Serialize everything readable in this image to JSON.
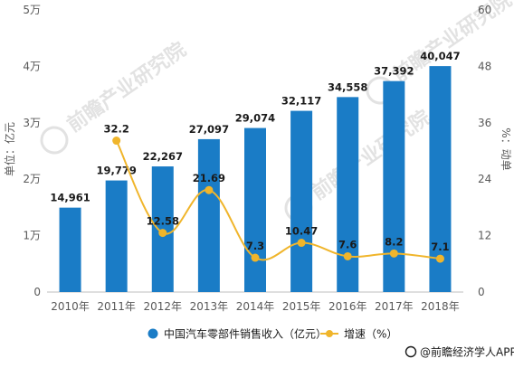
{
  "chart_data": {
    "type": "bar",
    "categories": [
      "2010年",
      "2011年",
      "2012年",
      "2013年",
      "2014年",
      "2015年",
      "2016年",
      "2017年",
      "2018年"
    ],
    "series": [
      {
        "name": "中国汽车零部件销售收入（亿元）",
        "type": "bar",
        "axis": "left",
        "values": [
          14961,
          19779,
          22267,
          27097,
          29074,
          32117,
          34558,
          37392,
          40047
        ],
        "labels": [
          "14,961",
          "19,779",
          "22,267",
          "27,097",
          "29,074",
          "32,117",
          "34,558",
          "37,392",
          "40,047"
        ],
        "color": "#1a7cc6"
      },
      {
        "name": "增速（%）",
        "type": "line",
        "axis": "right",
        "values": [
          null,
          32.2,
          12.58,
          21.69,
          7.3,
          10.47,
          7.6,
          8.2,
          7.1
        ],
        "labels": [
          "",
          "32.2",
          "12.58",
          "21.69",
          "7.3",
          "10.47",
          "7.6",
          "8.2",
          "7.1"
        ],
        "color": "#f0b52b"
      }
    ],
    "ylabel_left": "单位：亿元",
    "ylabel_right": "%：动单",
    "ylim_left": [
      0,
      50000
    ],
    "ylim_right": [
      0,
      60
    ],
    "left_ticks": [
      "0",
      "1万",
      "2万",
      "3万",
      "4万",
      "5万"
    ],
    "right_ticks": [
      "0",
      "12",
      "24",
      "36",
      "48",
      "60"
    ],
    "grid": false,
    "legend_position": "bottom",
    "watermark": "前瞻产业研究院",
    "footer_source": "@前瞻经济学人APP"
  }
}
